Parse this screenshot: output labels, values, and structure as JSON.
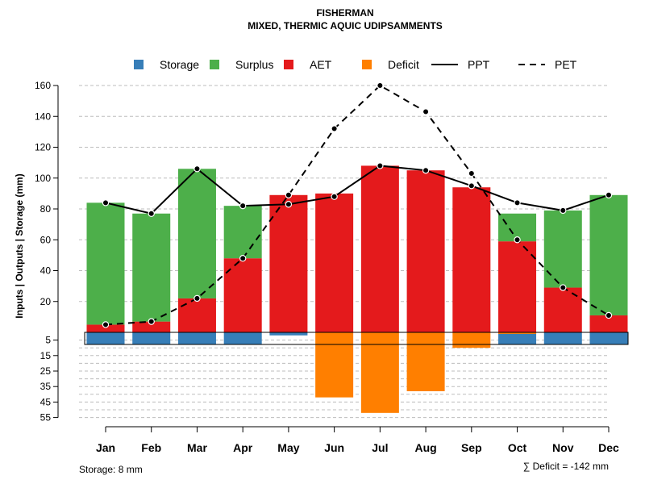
{
  "colors": {
    "storage": "#377EB8",
    "surplus": "#4DAF4A",
    "aet": "#E41A1C",
    "deficit": "#FF7F00",
    "grid": "#bdbdbd",
    "line": "#000000"
  },
  "chart_data": {
    "type": "bar",
    "title": "FISHERMAN",
    "subtitle": "MIXED, THERMIC AQUIC UDIPSAMMENTS",
    "ylabel": "Inputs | Outputs | Storage    (mm)",
    "ylim_top": [
      0,
      160
    ],
    "ylim_bottom": [
      0,
      55
    ],
    "yticks_top": [
      "20",
      "40",
      "60",
      "80",
      "100",
      "120",
      "140",
      "160"
    ],
    "yticks_bottom": [
      "5",
      "15",
      "25",
      "35",
      "45",
      "55"
    ],
    "legend": [
      {
        "label": "Storage",
        "kind": "box",
        "key": "storage"
      },
      {
        "label": "Surplus",
        "kind": "box",
        "key": "surplus"
      },
      {
        "label": "AET",
        "kind": "box",
        "key": "aet"
      },
      {
        "label": "Deficit",
        "kind": "box",
        "key": "deficit"
      },
      {
        "label": "PPT",
        "kind": "solid"
      },
      {
        "label": "PET",
        "kind": "dashed"
      }
    ],
    "categories": [
      "Jan",
      "Feb",
      "Mar",
      "Apr",
      "May",
      "Jun",
      "Jul",
      "Aug",
      "Sep",
      "Oct",
      "Nov",
      "Dec"
    ],
    "series": [
      {
        "name": "AET",
        "values": [
          5,
          7,
          22,
          48,
          89,
          90,
          108,
          105,
          94,
          59,
          29,
          11
        ]
      },
      {
        "name": "Surplus",
        "values": [
          79,
          70,
          84,
          34,
          0,
          0,
          0,
          0,
          0,
          18,
          50,
          78
        ]
      },
      {
        "name": "Storage",
        "values": [
          8,
          8,
          8,
          8,
          2,
          0,
          0,
          0,
          0,
          8,
          8,
          8
        ]
      },
      {
        "name": "Deficit",
        "values": [
          0,
          0,
          0,
          0,
          0,
          42,
          52,
          38,
          10,
          1,
          0,
          0
        ]
      },
      {
        "name": "PPT",
        "values": [
          84,
          77,
          106,
          82,
          83,
          88,
          108,
          105,
          95,
          84,
          79,
          89
        ]
      },
      {
        "name": "PET",
        "values": [
          5,
          7,
          22,
          48,
          89,
          132,
          160,
          143,
          103,
          60,
          29,
          11
        ]
      }
    ],
    "storage_note": "Storage: 8 mm",
    "deficit_note": "∑ Deficit = -142 mm"
  }
}
